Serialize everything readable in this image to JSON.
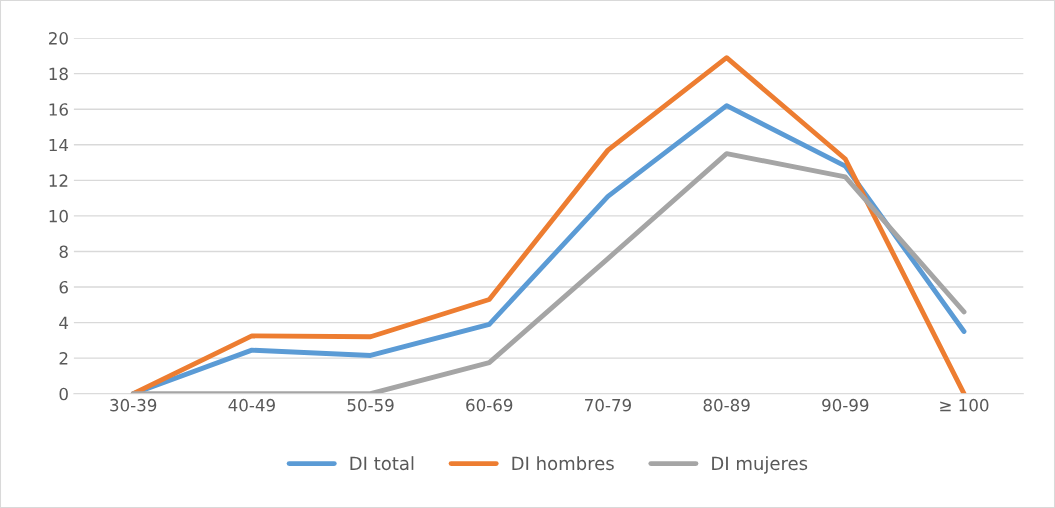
{
  "chart_data": {
    "type": "line",
    "categories": [
      "30-39",
      "40-49",
      "50-59",
      "60-69",
      "70-79",
      "80-89",
      "90-99",
      "≥ 100"
    ],
    "series": [
      {
        "name": "DI total",
        "color": "#5b9bd5",
        "values": [
          0,
          2.45,
          2.15,
          3.9,
          11.1,
          16.2,
          12.8,
          3.5
        ]
      },
      {
        "name": "DI hombres",
        "color": "#ed7d31",
        "values": [
          0,
          3.25,
          3.2,
          5.3,
          13.7,
          18.9,
          13.2,
          0
        ]
      },
      {
        "name": "DI mujeres",
        "color": "#a5a5a5",
        "values": [
          0,
          0,
          0,
          1.75,
          7.6,
          13.5,
          12.2,
          4.6
        ]
      }
    ],
    "ylim": [
      0,
      20
    ],
    "yticks": [
      0,
      2,
      4,
      6,
      8,
      10,
      12,
      14,
      16,
      18,
      20
    ],
    "grid": "y",
    "legend": "bottom",
    "marker": "none",
    "line_style": "solid"
  }
}
